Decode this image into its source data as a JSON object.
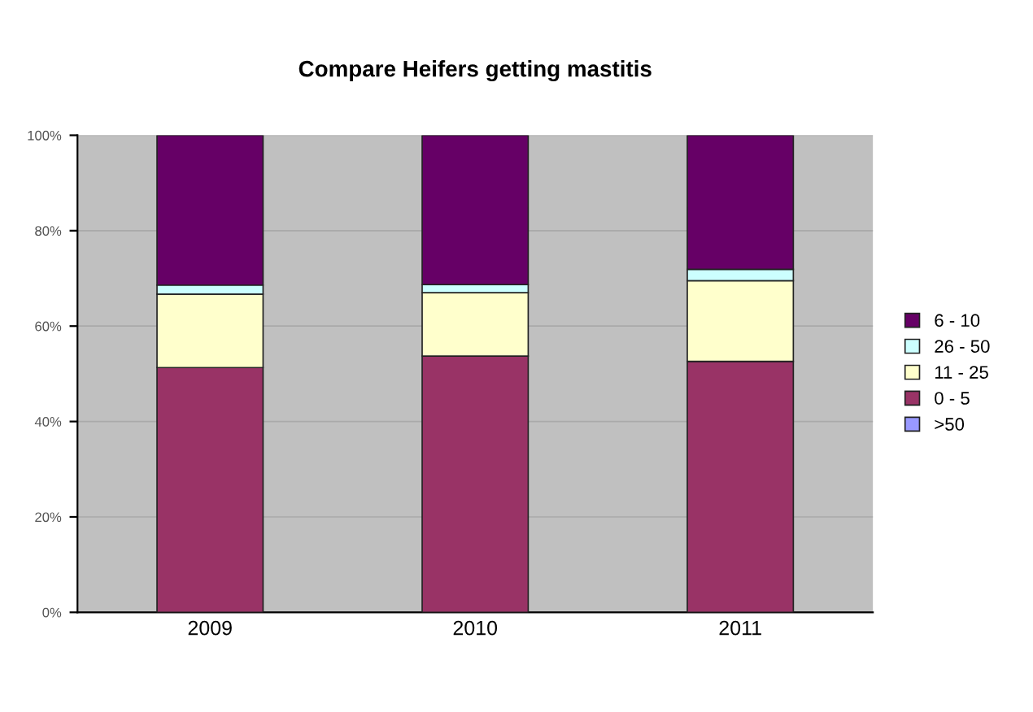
{
  "chart_data": {
    "type": "bar",
    "title": "Compare Heifers getting mastitis",
    "categories": [
      "2009",
      "2010",
      "2011"
    ],
    "stacked": true,
    "series": [
      {
        "name": ">50",
        "color": "#9999ff",
        "values": [
          0,
          0,
          0
        ]
      },
      {
        "name": "0 - 5",
        "color": "#993366",
        "values": [
          51.3,
          53.7,
          52.6
        ]
      },
      {
        "name": "11 - 25",
        "color": "#ffffcc",
        "values": [
          15.4,
          13.3,
          16.9
        ]
      },
      {
        "name": "26 - 50",
        "color": "#ccffff",
        "values": [
          1.9,
          1.7,
          2.4
        ]
      },
      {
        "name": "6 - 10",
        "color": "#660066",
        "values": [
          31.4,
          31.3,
          28.1
        ]
      }
    ],
    "ylim": [
      0,
      100
    ],
    "yticks": [
      {
        "value": 0,
        "label": "0%"
      },
      {
        "value": 20,
        "label": "20%"
      },
      {
        "value": 40,
        "label": "40%"
      },
      {
        "value": 60,
        "label": "60%"
      },
      {
        "value": 80,
        "label": "80%"
      },
      {
        "value": 100,
        "label": "100%"
      }
    ],
    "grid": "y",
    "legend": "right"
  }
}
